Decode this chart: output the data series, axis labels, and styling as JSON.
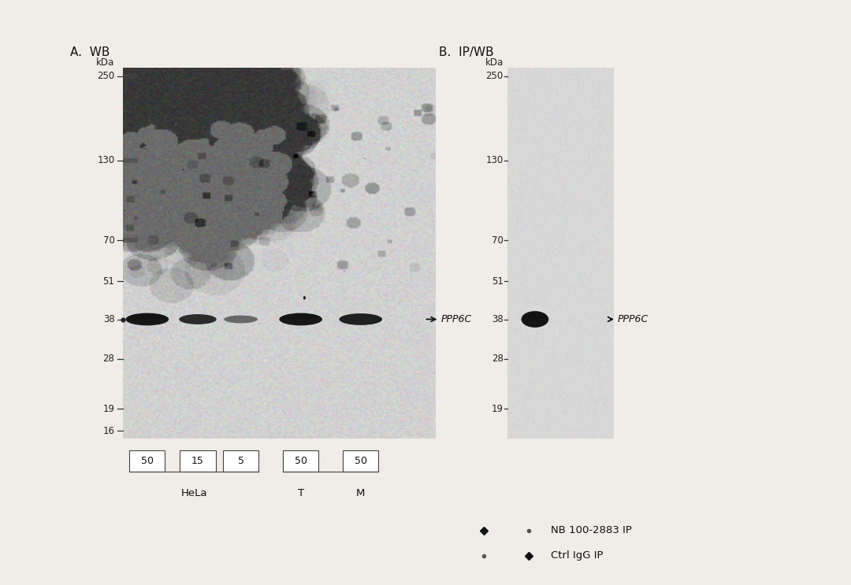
{
  "fig_width": 10.8,
  "fig_height": 7.43,
  "bg_color": "#f0ece8",
  "blot_A_color": "#d4d0cc",
  "blot_B_color": "#dedad6",
  "outer_bg": "#e8e4e0",
  "panel_A_title": "A.  WB",
  "panel_B_title": "B.  IP/WB",
  "kda_label": "kDa",
  "mw_markers_A": [
    250,
    130,
    70,
    51,
    38,
    28,
    19,
    16
  ],
  "mw_markers_B": [
    250,
    130,
    70,
    51,
    38,
    28,
    19
  ],
  "panel_A_annotation": "PPP6C",
  "panel_B_annotation": "PPP6C",
  "lane_labels_A": [
    "50",
    "15",
    "5",
    "50",
    "50"
  ],
  "hela_label": "HeLa",
  "T_label": "T",
  "M_label": "M",
  "legend_line1": "NB 100-2883 IP",
  "legend_line2": "Ctrl IgG IP",
  "legend_col1": [
    "◆",
    "·"
  ],
  "legend_col2": [
    "·",
    "◆"
  ],
  "text_color": "#222222",
  "band_color": "#111111"
}
